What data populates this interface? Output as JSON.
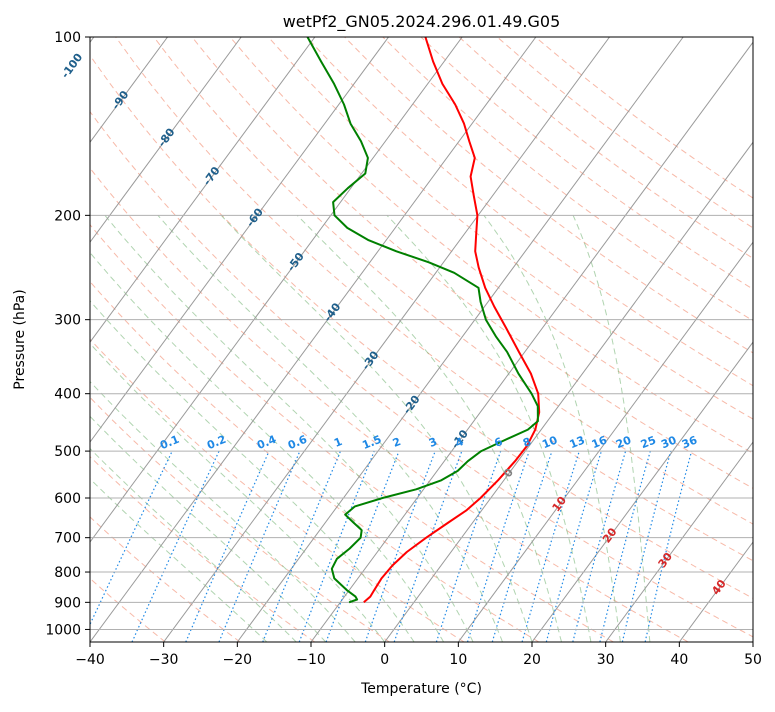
{
  "chart_data": {
    "type": "line",
    "title": "wetPf2_GN05.2024.296.01.49.G05",
    "xlabel": "Temperature (°C)",
    "ylabel": "Pressure (hPa)",
    "xlim": [
      -40,
      50
    ],
    "ylim": [
      1050,
      100
    ],
    "y_scale": "log",
    "grid": true,
    "x_ticks": [
      -40,
      -30,
      -20,
      -10,
      0,
      10,
      20,
      30,
      40,
      50
    ],
    "x_tick_labels": [
      "−40",
      "−30",
      "−20",
      "−10",
      "0",
      "10",
      "20",
      "30",
      "40",
      "50"
    ],
    "y_ticks": [
      1000,
      900,
      800,
      700,
      600,
      500,
      400,
      300,
      200,
      100
    ],
    "y_tick_labels": [
      "1000",
      "900",
      "800",
      "700",
      "600",
      "500",
      "400",
      "300",
      "200",
      "100"
    ],
    "skew_isotherm_labels": [
      {
        "text": "-100",
        "value": -100
      },
      {
        "text": "-90",
        "value": -90
      },
      {
        "text": "-80",
        "value": -80
      },
      {
        "text": "-70",
        "value": -70
      },
      {
        "text": "-60",
        "value": -60
      },
      {
        "text": "-50",
        "value": -50
      },
      {
        "text": "-40",
        "value": -40
      },
      {
        "text": "-30",
        "value": -30
      },
      {
        "text": "-20",
        "value": -20
      },
      {
        "text": "-10",
        "value": -10
      },
      {
        "text": "0",
        "value": 0
      },
      {
        "text": "10",
        "value": 10
      },
      {
        "text": "20",
        "value": 20
      },
      {
        "text": "30",
        "value": 30
      },
      {
        "text": "40",
        "value": 40
      }
    ],
    "mixing_ratio_labels": [
      "0.1",
      "0.2",
      "0.4",
      "0.6",
      "1",
      "1.5",
      "2",
      "3",
      "4",
      "6",
      "8",
      "10",
      "13",
      "16",
      "20",
      "25",
      "30",
      "36"
    ],
    "mixing_ratio_values": [
      0.1,
      0.2,
      0.4,
      0.6,
      1,
      1.5,
      2,
      3,
      4,
      6,
      8,
      10,
      13,
      16,
      20,
      25,
      30,
      36
    ],
    "series": [
      {
        "color": "#ff0000",
        "points": [
          {
            "p": 900,
            "t": -6.8
          },
          {
            "p": 880,
            "t": -6.5
          },
          {
            "p": 860,
            "t": -6.6
          },
          {
            "p": 820,
            "t": -6.8
          },
          {
            "p": 780,
            "t": -6.6
          },
          {
            "p": 740,
            "t": -6.0
          },
          {
            "p": 700,
            "t": -4.8
          },
          {
            "p": 660,
            "t": -3.3
          },
          {
            "p": 630,
            "t": -2.1
          },
          {
            "p": 600,
            "t": -1.4
          },
          {
            "p": 560,
            "t": -0.8
          },
          {
            "p": 520,
            "t": -0.4
          },
          {
            "p": 490,
            "t": -0.3
          },
          {
            "p": 460,
            "t": -0.8
          },
          {
            "p": 430,
            "t": -2.0
          },
          {
            "p": 400,
            "t": -4.0
          },
          {
            "p": 370,
            "t": -7.0
          },
          {
            "p": 340,
            "t": -10.8
          },
          {
            "p": 310,
            "t": -14.9
          },
          {
            "p": 285,
            "t": -18.7
          },
          {
            "p": 265,
            "t": -21.8
          },
          {
            "p": 245,
            "t": -24.7
          },
          {
            "p": 230,
            "t": -26.8
          },
          {
            "p": 215,
            "t": -28.4
          },
          {
            "p": 200,
            "t": -30.1
          },
          {
            "p": 185,
            "t": -32.6
          },
          {
            "p": 172,
            "t": -34.9
          },
          {
            "p": 160,
            "t": -36.2
          },
          {
            "p": 150,
            "t": -38.6
          },
          {
            "p": 140,
            "t": -41.1
          },
          {
            "p": 130,
            "t": -44.2
          },
          {
            "p": 120,
            "t": -48.0
          },
          {
            "p": 110,
            "t": -51.5
          },
          {
            "p": 100,
            "t": -55.0
          }
        ]
      },
      {
        "color": "#008000",
        "points": [
          {
            "p": 900,
            "t": -8.8
          },
          {
            "p": 890,
            "t": -8.0
          },
          {
            "p": 880,
            "t": -8.5
          },
          {
            "p": 860,
            "t": -10.2
          },
          {
            "p": 820,
            "t": -13.2
          },
          {
            "p": 790,
            "t": -14.5
          },
          {
            "p": 760,
            "t": -14.8
          },
          {
            "p": 730,
            "t": -14.1
          },
          {
            "p": 700,
            "t": -13.7
          },
          {
            "p": 680,
            "t": -14.3
          },
          {
            "p": 660,
            "t": -16.2
          },
          {
            "p": 640,
            "t": -18.1
          },
          {
            "p": 620,
            "t": -17.6
          },
          {
            "p": 600,
            "t": -14.7
          },
          {
            "p": 580,
            "t": -11.0
          },
          {
            "p": 560,
            "t": -8.5
          },
          {
            "p": 540,
            "t": -7.2
          },
          {
            "p": 520,
            "t": -6.8
          },
          {
            "p": 500,
            "t": -6.0
          },
          {
            "p": 480,
            "t": -4.0
          },
          {
            "p": 460,
            "t": -1.8
          },
          {
            "p": 445,
            "t": -1.3
          },
          {
            "p": 420,
            "t": -2.8
          },
          {
            "p": 400,
            "t": -4.9
          },
          {
            "p": 370,
            "t": -8.7
          },
          {
            "p": 340,
            "t": -12.4
          },
          {
            "p": 320,
            "t": -15.5
          },
          {
            "p": 300,
            "t": -18.5
          },
          {
            "p": 280,
            "t": -21.0
          },
          {
            "p": 265,
            "t": -22.7
          },
          {
            "p": 250,
            "t": -27.5
          },
          {
            "p": 240,
            "t": -32.0
          },
          {
            "p": 230,
            "t": -37.5
          },
          {
            "p": 220,
            "t": -42.5
          },
          {
            "p": 210,
            "t": -46.5
          },
          {
            "p": 200,
            "t": -49.5
          },
          {
            "p": 190,
            "t": -51.0
          },
          {
            "p": 180,
            "t": -50.4
          },
          {
            "p": 170,
            "t": -49.5
          },
          {
            "p": 160,
            "t": -50.7
          },
          {
            "p": 150,
            "t": -53.3
          },
          {
            "p": 140,
            "t": -56.5
          },
          {
            "p": 130,
            "t": -59.3
          },
          {
            "p": 120,
            "t": -62.7
          },
          {
            "p": 110,
            "t": -66.7
          },
          {
            "p": 100,
            "t": -71.0
          }
        ]
      }
    ]
  },
  "colors": {
    "temperature": "#ff0000",
    "dewpoint": "#008000",
    "isotherm": "#555555",
    "isotherm_label": "#1f5f8b",
    "dry_adiabat": "#f08060",
    "moist_adiabat": "#70b070",
    "mixing_ratio": "#1e88e5",
    "mixing_ratio_label": "#1e88e5",
    "warm_label": "#d62728",
    "zero_label": "#808080"
  }
}
